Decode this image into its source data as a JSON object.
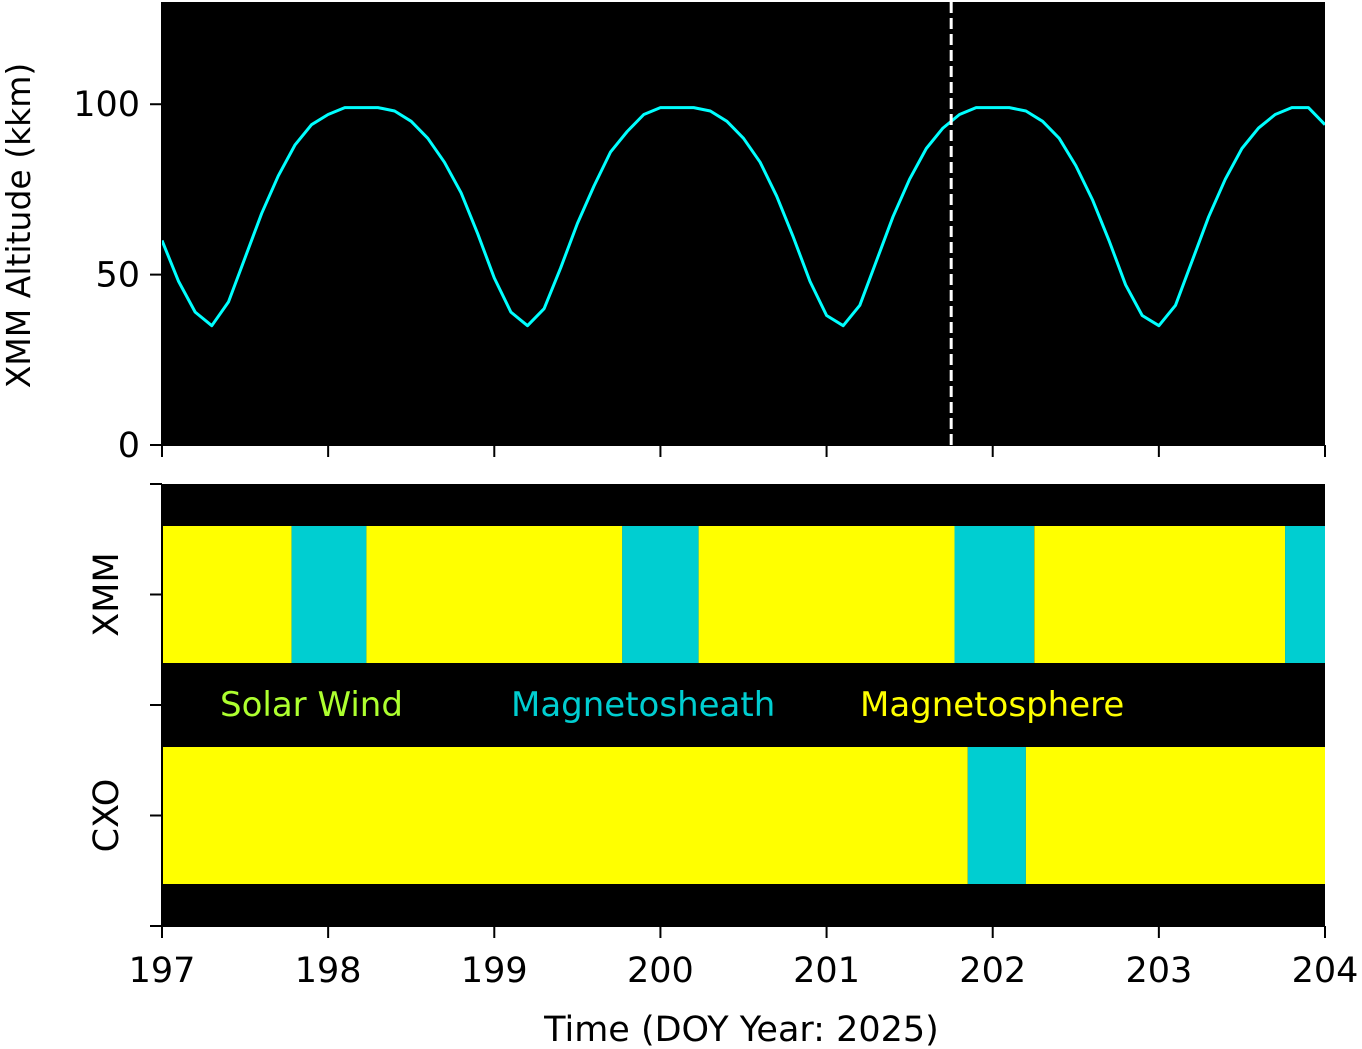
{
  "chart_data": [
    {
      "type": "line",
      "ylabel": "XMM Altitude (kkm)",
      "xlim": [
        197,
        204
      ],
      "ylim": [
        0,
        130
      ],
      "yticks": [
        0,
        50,
        100
      ],
      "xticks": [
        197,
        198,
        199,
        200,
        201,
        202,
        203,
        204
      ],
      "background": "#000000",
      "series": [
        {
          "x": [
            197.0,
            197.1,
            197.2,
            197.3,
            197.4,
            197.5,
            197.6,
            197.7,
            197.8,
            197.9,
            198.0,
            198.1,
            198.2,
            198.3,
            198.4,
            198.5,
            198.6,
            198.7,
            198.8,
            198.9,
            199.0,
            199.1,
            199.2,
            199.3,
            199.4,
            199.5,
            199.6,
            199.7,
            199.8,
            199.9,
            200.0,
            200.1,
            200.2,
            200.3,
            200.4,
            200.5,
            200.6,
            200.7,
            200.8,
            200.9,
            201.0,
            201.1,
            201.2,
            201.3,
            201.4,
            201.5,
            201.6,
            201.7,
            201.8,
            201.9,
            202.0,
            202.1,
            202.2,
            202.3,
            202.4,
            202.5,
            202.6,
            202.7,
            202.8,
            202.9,
            203.0,
            203.1,
            203.2,
            203.3,
            203.4,
            203.5,
            203.6,
            203.7,
            203.8,
            203.9,
            204.0
          ],
          "y": [
            60,
            48,
            39,
            35,
            42,
            55,
            68,
            79,
            88,
            94,
            97,
            99,
            99,
            99,
            98,
            95,
            90,
            83,
            74,
            62,
            49,
            39,
            35,
            40,
            52,
            65,
            76,
            86,
            92,
            97,
            99,
            99,
            99,
            98,
            95,
            90,
            83,
            73,
            61,
            48,
            38,
            35,
            41,
            54,
            67,
            78,
            87,
            93,
            97,
            99,
            99,
            99,
            98,
            95,
            90,
            82,
            72,
            60,
            47,
            38,
            35,
            41,
            54,
            67,
            78,
            87,
            93,
            97,
            99,
            99,
            94
          ],
          "color": "#00ffff"
        }
      ],
      "vline": {
        "x": 201.75,
        "color": "#ffffff",
        "style": "dashed"
      }
    },
    {
      "type": "timeline",
      "xlabel": "Time (DOY Year: 2025)",
      "xlim": [
        197,
        204
      ],
      "xticks": [
        197,
        198,
        199,
        200,
        201,
        202,
        203,
        204
      ],
      "xtick_labels": [
        "197",
        "198",
        "199",
        "200",
        "201",
        "202",
        "203",
        "204"
      ],
      "rows": [
        {
          "label": "XMM",
          "segments": [
            {
              "start": 197.0,
              "end": 197.78,
              "state": "Magnetosphere"
            },
            {
              "start": 197.78,
              "end": 198.23,
              "state": "Magnetosheath"
            },
            {
              "start": 198.23,
              "end": 199.77,
              "state": "Magnetosphere"
            },
            {
              "start": 199.77,
              "end": 200.23,
              "state": "Magnetosheath"
            },
            {
              "start": 200.23,
              "end": 201.77,
              "state": "Magnetosphere"
            },
            {
              "start": 201.77,
              "end": 202.25,
              "state": "Magnetosheath"
            },
            {
              "start": 202.25,
              "end": 203.76,
              "state": "Magnetosphere"
            },
            {
              "start": 203.76,
              "end": 204.0,
              "state": "Magnetosheath"
            }
          ]
        },
        {
          "label": "CXO",
          "segments": [
            {
              "start": 197.0,
              "end": 201.85,
              "state": "Magnetosphere"
            },
            {
              "start": 201.85,
              "end": 202.2,
              "state": "Magnetosheath"
            },
            {
              "start": 202.2,
              "end": 204.0,
              "state": "Magnetosphere"
            }
          ]
        }
      ],
      "legend": [
        {
          "name": "Solar Wind",
          "color": "#adff2f"
        },
        {
          "name": "Magnetosheath",
          "color": "#00ced1"
        },
        {
          "name": "Magnetosphere",
          "color": "#ffff00"
        }
      ],
      "background": "#000000"
    }
  ]
}
